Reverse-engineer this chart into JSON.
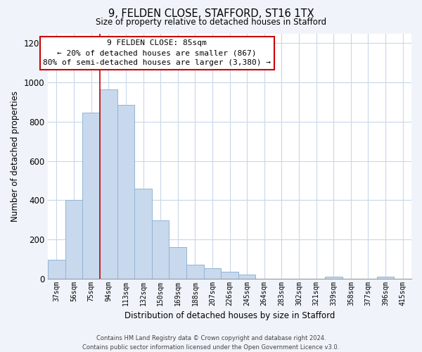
{
  "title": "9, FELDEN CLOSE, STAFFORD, ST16 1TX",
  "subtitle": "Size of property relative to detached houses in Stafford",
  "xlabel": "Distribution of detached houses by size in Stafford",
  "ylabel": "Number of detached properties",
  "bar_labels": [
    "37sqm",
    "56sqm",
    "75sqm",
    "94sqm",
    "113sqm",
    "132sqm",
    "150sqm",
    "169sqm",
    "188sqm",
    "207sqm",
    "226sqm",
    "245sqm",
    "264sqm",
    "283sqm",
    "302sqm",
    "321sqm",
    "339sqm",
    "358sqm",
    "377sqm",
    "396sqm",
    "415sqm"
  ],
  "bar_values": [
    95,
    400,
    845,
    965,
    885,
    460,
    295,
    160,
    70,
    52,
    35,
    20,
    0,
    0,
    0,
    0,
    10,
    0,
    0,
    10,
    0
  ],
  "bar_color": "#c8d9ed",
  "bar_edge_color": "#91b4d5",
  "vline_x": 2.5,
  "vline_color": "#cc0000",
  "annotation_title": "9 FELDEN CLOSE: 85sqm",
  "annotation_line1": "← 20% of detached houses are smaller (867)",
  "annotation_line2": "80% of semi-detached houses are larger (3,380) →",
  "annotation_box_color": "#ffffff",
  "annotation_box_edge": "#cc0000",
  "ylim": [
    0,
    1250
  ],
  "yticks": [
    0,
    200,
    400,
    600,
    800,
    1000,
    1200
  ],
  "footer1": "Contains HM Land Registry data © Crown copyright and database right 2024.",
  "footer2": "Contains public sector information licensed under the Open Government Licence v3.0.",
  "bg_color": "#f0f4fa",
  "plot_bg_color": "#ffffff",
  "grid_color": "#c8d8ec"
}
